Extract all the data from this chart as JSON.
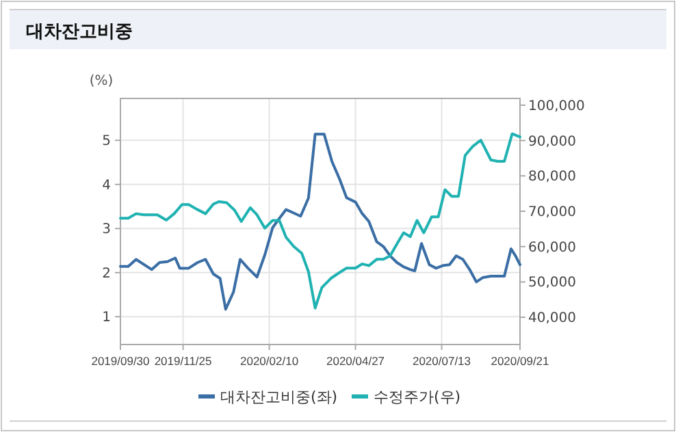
{
  "chart_data": {
    "type": "line",
    "title": "대차잔고비중",
    "ylabel": "(%)",
    "xlim": [
      "2019-09-30",
      "2020-09-21"
    ],
    "xticks": [
      {
        "value": "2019-09-30",
        "label": "2019/09/30"
      },
      {
        "value": "2019-11-25",
        "label": "2019/11/25"
      },
      {
        "value": "2020-02-10",
        "label": "2020/02/10"
      },
      {
        "value": "2020-04-27",
        "label": "2020/04/27"
      },
      {
        "value": "2020-07-13",
        "label": "2020/07/13"
      },
      {
        "value": "2020-09-21",
        "label": "2020/09/21"
      }
    ],
    "ylim": [
      0.37,
      5.95
    ],
    "yticks": [
      1,
      2,
      3,
      4,
      5
    ],
    "y2lim": [
      32300,
      101900
    ],
    "y2ticks": [
      {
        "value": 40000,
        "label": "40,000"
      },
      {
        "value": 50000,
        "label": "50,000"
      },
      {
        "value": 60000,
        "label": "60,000"
      },
      {
        "value": 70000,
        "label": "70,000"
      },
      {
        "value": 80000,
        "label": "80,000"
      },
      {
        "value": 90000,
        "label": "90,000"
      },
      {
        "value": 100000,
        "label": "100,000"
      }
    ],
    "grid": true,
    "legend": "bottom",
    "marker": "none",
    "line_style": "solid",
    "series": [
      {
        "name": "대차잔고비중(좌)",
        "color": "#3a6ea5",
        "x": [
          "2019-09-30",
          "2019-10-07",
          "2019-10-14",
          "2019-10-28",
          "2019-11-04",
          "2019-11-11",
          "2019-11-18",
          "2019-11-22",
          "2019-11-30",
          "2019-12-08",
          "2019-12-15",
          "2019-12-22",
          "2019-12-28",
          "2020-01-02",
          "2020-01-09",
          "2020-01-15",
          "2020-01-22",
          "2020-01-30",
          "2020-02-06",
          "2020-02-13",
          "2020-02-19",
          "2020-02-25",
          "2020-03-03",
          "2020-03-09",
          "2020-03-16",
          "2020-03-22",
          "2020-03-30",
          "2020-04-06",
          "2020-04-13",
          "2020-04-19",
          "2020-04-27",
          "2020-05-03",
          "2020-05-09",
          "2020-05-16",
          "2020-05-22",
          "2020-05-28",
          "2020-06-03",
          "2020-06-09",
          "2020-06-15",
          "2020-06-19",
          "2020-06-25",
          "2020-07-02",
          "2020-07-08",
          "2020-07-14",
          "2020-07-20",
          "2020-07-26",
          "2020-08-01",
          "2020-08-07",
          "2020-08-13",
          "2020-08-19",
          "2020-08-26",
          "2020-09-07",
          "2020-09-13",
          "2020-09-17",
          "2020-09-21"
        ],
        "values": [
          2.14,
          2.14,
          2.3,
          2.07,
          2.23,
          2.25,
          2.33,
          2.1,
          2.1,
          2.23,
          2.3,
          1.97,
          1.87,
          1.17,
          1.56,
          2.3,
          2.1,
          1.9,
          2.4,
          3.02,
          3.23,
          3.43,
          3.35,
          3.28,
          3.69,
          5.14,
          5.14,
          4.52,
          4.11,
          3.7,
          3.6,
          3.34,
          3.16,
          2.7,
          2.59,
          2.38,
          2.23,
          2.13,
          2.07,
          2.04,
          2.66,
          2.18,
          2.1,
          2.16,
          2.18,
          2.38,
          2.3,
          2.07,
          1.79,
          1.89,
          1.92,
          1.92,
          2.54,
          2.38,
          2.18
        ]
      },
      {
        "name": "수정주가(우)",
        "color": "#20b2b2",
        "axis": "y2",
        "x": [
          "2019-09-30",
          "2019-10-07",
          "2019-10-14",
          "2019-10-21",
          "2019-11-02",
          "2019-11-10",
          "2019-11-17",
          "2019-11-24",
          "2019-11-30",
          "2019-12-07",
          "2019-12-15",
          "2019-12-22",
          "2019-12-27",
          "2020-01-03",
          "2020-01-10",
          "2020-01-16",
          "2020-01-24",
          "2020-01-30",
          "2020-02-06",
          "2020-02-13",
          "2020-02-19",
          "2020-02-25",
          "2020-03-03",
          "2020-03-10",
          "2020-03-16",
          "2020-03-22",
          "2020-03-28",
          "2020-04-05",
          "2020-04-12",
          "2020-04-19",
          "2020-04-27",
          "2020-05-03",
          "2020-05-09",
          "2020-05-16",
          "2020-05-22",
          "2020-05-28",
          "2020-06-03",
          "2020-06-09",
          "2020-06-15",
          "2020-06-21",
          "2020-06-27",
          "2020-07-04",
          "2020-07-10",
          "2020-07-16",
          "2020-07-22",
          "2020-07-28",
          "2020-08-03",
          "2020-08-10",
          "2020-08-17",
          "2020-08-26",
          "2020-09-01",
          "2020-09-07",
          "2020-09-14",
          "2020-09-21"
        ],
        "values": [
          68000,
          68000,
          69300,
          69000,
          69000,
          67500,
          69300,
          71900,
          71900,
          70600,
          69300,
          72000,
          72700,
          72400,
          70300,
          67100,
          71000,
          69000,
          65200,
          67400,
          67400,
          62600,
          60000,
          58100,
          52900,
          42600,
          48400,
          51000,
          52500,
          53900,
          53900,
          55100,
          54600,
          56400,
          56400,
          57400,
          60700,
          63900,
          62800,
          67400,
          63900,
          68400,
          68400,
          76100,
          74200,
          74200,
          85800,
          88400,
          90100,
          84500,
          84100,
          84100,
          91900,
          91000
        ]
      }
    ]
  }
}
